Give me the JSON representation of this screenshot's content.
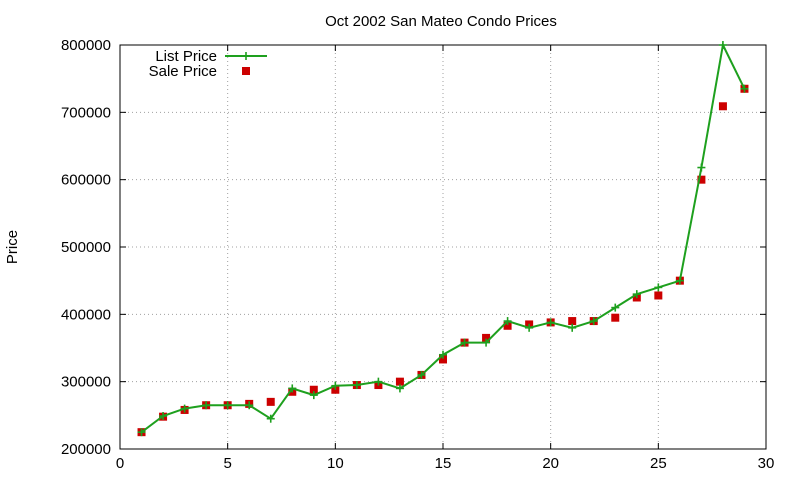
{
  "chart_data": {
    "type": "line",
    "title": "Oct 2002 San Mateo Condo Prices",
    "xlabel": "",
    "ylabel": "Price",
    "xlim": [
      0,
      30
    ],
    "ylim": [
      200000,
      800000
    ],
    "x_ticks": [
      0,
      5,
      10,
      15,
      20,
      25,
      30
    ],
    "y_ticks": [
      200000,
      300000,
      400000,
      500000,
      600000,
      700000,
      800000
    ],
    "grid": true,
    "legend_position": "top-left",
    "series": [
      {
        "name": "List Price",
        "style": "line+cross",
        "color": "#1ea01e",
        "x": [
          1,
          2,
          3,
          4,
          5,
          6,
          7,
          8,
          9,
          10,
          11,
          12,
          13,
          14,
          15,
          16,
          17,
          18,
          19,
          20,
          21,
          22,
          23,
          24,
          25,
          26,
          27,
          28,
          29
        ],
        "values": [
          225000,
          249000,
          260000,
          265000,
          265000,
          265000,
          245000,
          290000,
          280000,
          294000,
          295000,
          300000,
          290000,
          310000,
          340000,
          358000,
          358000,
          390000,
          380000,
          388000,
          380000,
          390000,
          410000,
          430000,
          440000,
          450000,
          618000,
          800000,
          735000
        ]
      },
      {
        "name": "Sale Price",
        "style": "square",
        "color": "#cc0000",
        "x": [
          1,
          2,
          3,
          4,
          5,
          6,
          7,
          8,
          9,
          10,
          11,
          12,
          13,
          14,
          15,
          16,
          17,
          18,
          19,
          20,
          21,
          22,
          23,
          24,
          25,
          26,
          27,
          28,
          29
        ],
        "values": [
          225000,
          248000,
          258000,
          265000,
          265000,
          267000,
          270000,
          285000,
          288000,
          288000,
          295000,
          295000,
          300000,
          310000,
          333000,
          358000,
          365000,
          383000,
          385000,
          388000,
          390000,
          390000,
          395000,
          425000,
          428000,
          450000,
          600000,
          709000,
          735000
        ]
      }
    ]
  }
}
